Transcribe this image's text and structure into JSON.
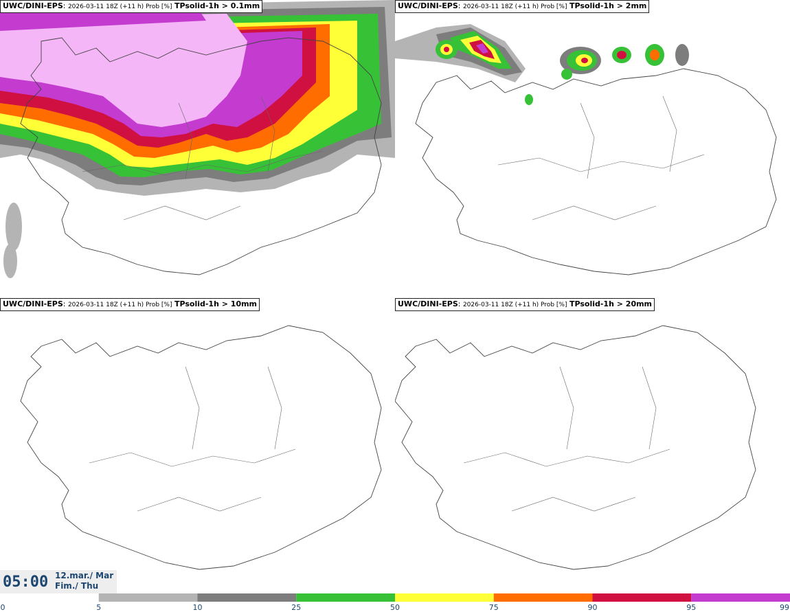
{
  "panels": [
    {
      "model": "UWC/DINI-EPS",
      "meta": "2026-03-11 18Z (+11 h) Prob [%]",
      "field": "TPsolid-1h > 0.1mm"
    },
    {
      "model": "UWC/DINI-EPS",
      "meta": "2026-03-11 18Z (+11 h) Prob [%]",
      "field": "TPsolid-1h > 2mm"
    },
    {
      "model": "UWC/DINI-EPS",
      "meta": "2026-03-11 18Z (+11 h) Prob [%]",
      "field": "TPsolid-1h > 10mm"
    },
    {
      "model": "UWC/DINI-EPS",
      "meta": "2026-03-11 18Z (+11 h) Prob [%]",
      "field": "TPsolid-1h > 20mm"
    }
  ],
  "time": {
    "clock": "05:00",
    "date_line1": "12.mar./ Mar",
    "date_line2": "Fim./ Thu"
  },
  "legend": {
    "ticks": [
      "0",
      "5",
      "10",
      "25",
      "50",
      "75",
      "90",
      "95",
      "99"
    ],
    "colors": [
      "#ffffff",
      "#b4b4b4",
      "#7d7d7d",
      "#37c137",
      "#ffff37",
      "#ff6c00",
      "#cf1041",
      "#c43bd0",
      "#f4b6f6"
    ]
  }
}
